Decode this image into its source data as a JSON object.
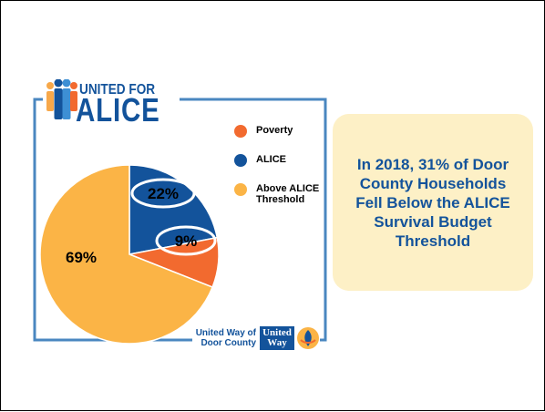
{
  "logo": {
    "top": "UNITED FOR",
    "main": "ALICE"
  },
  "chart_data": {
    "type": "pie",
    "title": "",
    "slices": [
      {
        "name": "ALICE",
        "value": 22,
        "label": "22%",
        "color": "#13539b"
      },
      {
        "name": "Poverty",
        "value": 9,
        "label": "9%",
        "color": "#f26a2f"
      },
      {
        "name": "Above ALICE Threshold",
        "value": 69,
        "label": "69%",
        "color": "#fbb446"
      }
    ],
    "legend": {
      "placement": "right",
      "entries": [
        {
          "label": "Poverty",
          "color": "#f26a2f"
        },
        {
          "label": "ALICE",
          "color": "#13539b"
        },
        {
          "label": "Above ALICE Threshold",
          "color": "#fbb446"
        }
      ]
    }
  },
  "callout": {
    "text": "In 2018, 31% of Door County Households Fell Below the ALICE Survival Budget Threshold"
  },
  "footer": {
    "org_name": "United Way of Door County",
    "uw_logo_text": "United Way"
  },
  "colors": {
    "brand_blue": "#13539b",
    "frame_blue": "#4a87c0",
    "callout_bg": "#fdf0c6",
    "person_colors": [
      "#f7a84a",
      "#13539b",
      "#3d8fd4",
      "#f26a2f"
    ]
  }
}
